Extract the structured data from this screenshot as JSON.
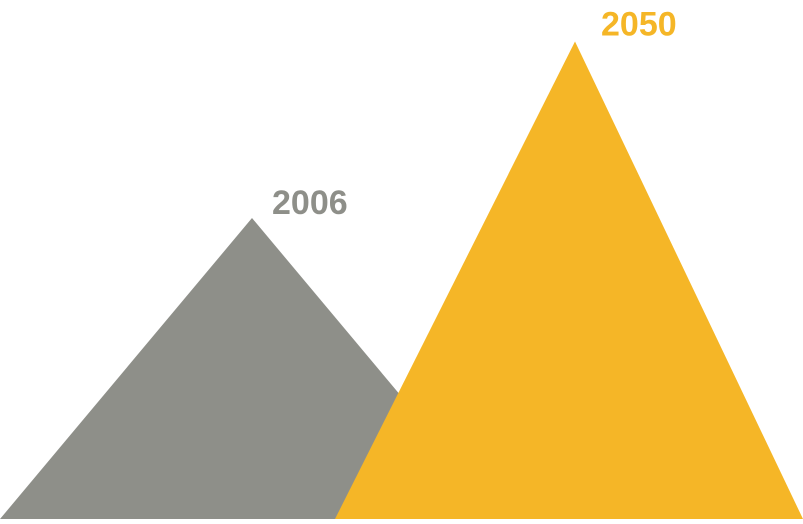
{
  "chart_data": {
    "type": "area",
    "title": "",
    "xlabel": "",
    "ylabel": "",
    "series": [
      {
        "label": "2006",
        "value": 0.58,
        "color": "#8e8f89"
      },
      {
        "label": "2050",
        "value": 0.92,
        "color": "#f5b627"
      }
    ]
  }
}
